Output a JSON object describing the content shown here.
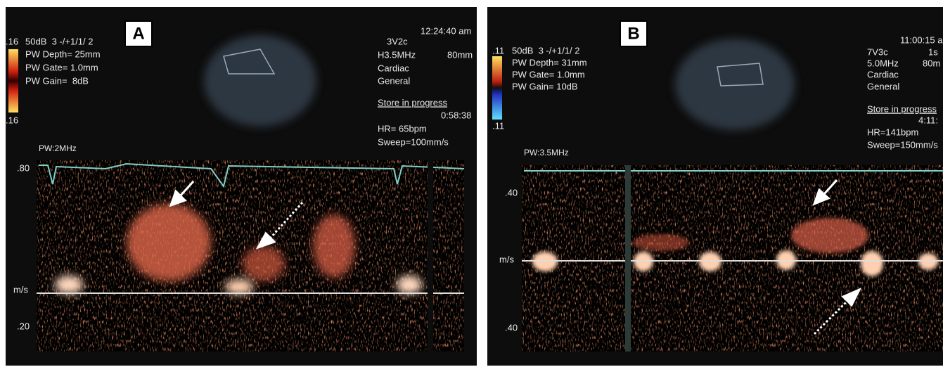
{
  "panels": [
    {
      "label": "A",
      "scale_top": ".16",
      "settings": "50dB  3 -/+1/1/ 2",
      "depth": "PW Depth= 25mm",
      "gate": "PW Gate= 1.0mm",
      "gain": "PW Gain=  8dB",
      "scale_bottom": ".16",
      "clock": "12:24:40 am",
      "probe": "3V2c",
      "frequency": "H3.5MHz",
      "range": "80mm",
      "preset": "Cardiac",
      "mode": "General",
      "store": "Store in progress",
      "timer": "0:58:38",
      "heart_rate": "HR= 65bpm",
      "sweep": "Sweep=100mm/s",
      "pw": "PW:2MHz",
      "axis_top": ".80",
      "axis_unit": "m/s",
      "axis_bottom": ".20"
    },
    {
      "label": "B",
      "scale_top": ".11",
      "settings": "50dB  3 -/+1/1/ 2",
      "depth": "PW Depth= 31mm",
      "gate": "PW Gate= 1.0mm",
      "gain": "PW Gain= 10dB",
      "scale_bottom": ".11",
      "clock": "11:00:15 a",
      "probe": "7V3c",
      "frame": "1s",
      "frequency": "5.0MHz",
      "range": "80m",
      "preset": "Cardiac",
      "mode": "General",
      "store": "Store in progress",
      "timer": "4:11:",
      "heart_rate": "HR=141bpm",
      "sweep": "Sweep=150mm/s",
      "pw": "PW:3.5MHz",
      "axis_top": ".40",
      "axis_unit": "m/s",
      "axis_bottom": ".40"
    }
  ]
}
